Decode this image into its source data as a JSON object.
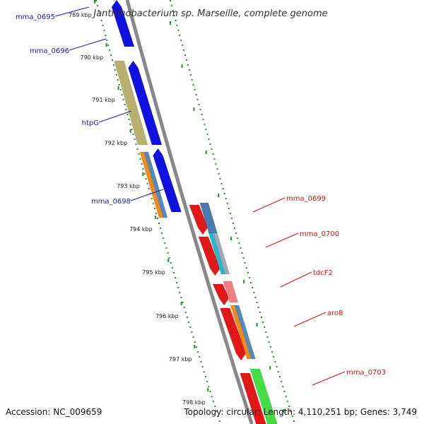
{
  "title": "Janthinobacterium sp. Marseille, complete genome",
  "footer": {
    "accession": "Accession: NC_009659",
    "summary": "Topology: circular; Length: 4,110,251 bp; Genes: 3,749"
  },
  "colors": {
    "backbone": "#888888",
    "tick": "#2a8a2a",
    "label_left": "#1a1aaa",
    "label_right": "#cc1111",
    "forward_cds": "#e01818",
    "reverse_cds": "#1010e0"
  },
  "ticks": [
    {
      "label": "789 kbp"
    },
    {
      "label": "790 kbp"
    },
    {
      "label": "791 kbp"
    },
    {
      "label": "792 kbp"
    },
    {
      "label": "793 kbp"
    },
    {
      "label": "794 kbp"
    },
    {
      "label": "795 kbp"
    },
    {
      "label": "796 kbp"
    },
    {
      "label": "797 kbp"
    },
    {
      "label": "798 kbp"
    }
  ],
  "gene_labels": [
    {
      "text": "mma_0695",
      "side": "left"
    },
    {
      "text": "mma_0696",
      "side": "left"
    },
    {
      "text": "htpG",
      "side": "left"
    },
    {
      "text": "mma_0698",
      "side": "left"
    },
    {
      "text": "mma_0699",
      "side": "right"
    },
    {
      "text": "mma_0700",
      "side": "right"
    },
    {
      "text": "tdcF2",
      "side": "right"
    },
    {
      "text": "aro8",
      "side": "right"
    },
    {
      "text": "mma_0703",
      "side": "right"
    }
  ]
}
